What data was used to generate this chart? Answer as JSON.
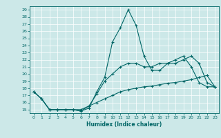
{
  "xlabel": "Humidex (Indice chaleur)",
  "ylabel": "",
  "bg_color": "#cce8e8",
  "grid_color": "#ffffff",
  "line_color": "#006666",
  "xlim": [
    -0.5,
    23.5
  ],
  "ylim": [
    14.5,
    29.5
  ],
  "x_ticks": [
    0,
    1,
    2,
    3,
    4,
    5,
    6,
    7,
    8,
    9,
    10,
    11,
    12,
    13,
    14,
    15,
    16,
    17,
    18,
    19,
    20,
    21,
    22,
    23
  ],
  "y_ticks": [
    15,
    16,
    17,
    18,
    19,
    20,
    21,
    22,
    23,
    24,
    25,
    26,
    27,
    28,
    29
  ],
  "series": [
    [
      17.5,
      16.5,
      15.0,
      15.0,
      15.0,
      15.0,
      14.8,
      15.2,
      17.5,
      19.5,
      24.5,
      26.5,
      29.0,
      26.8,
      22.5,
      20.5,
      20.5,
      21.5,
      22.0,
      22.5,
      21.0,
      18.8,
      18.2,
      18.2
    ],
    [
      17.5,
      16.5,
      15.0,
      15.0,
      15.0,
      15.0,
      14.8,
      15.5,
      17.2,
      19.0,
      20.0,
      21.0,
      21.5,
      21.5,
      21.0,
      21.0,
      21.5,
      21.5,
      21.5,
      22.0,
      22.5,
      21.5,
      18.8,
      18.2
    ],
    [
      17.5,
      16.5,
      15.0,
      15.0,
      15.0,
      15.0,
      15.0,
      15.5,
      16.0,
      16.5,
      17.0,
      17.5,
      17.8,
      18.0,
      18.2,
      18.3,
      18.5,
      18.7,
      18.8,
      19.0,
      19.2,
      19.5,
      19.8,
      18.2
    ]
  ]
}
